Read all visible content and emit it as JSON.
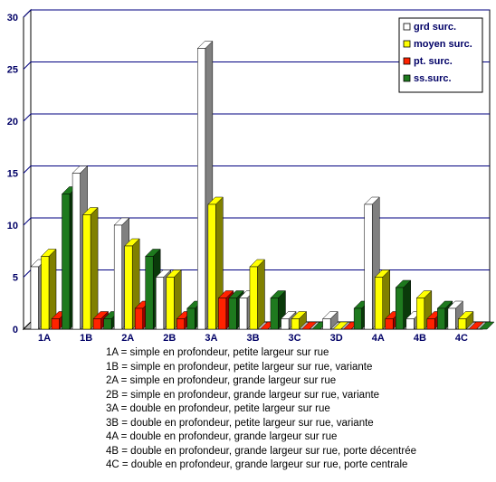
{
  "chart_data": {
    "type": "bar",
    "categories": [
      "1A",
      "1B",
      "2A",
      "2B",
      "3A",
      "3B",
      "3C",
      "3D",
      "4A",
      "4B",
      "4C"
    ],
    "y_ticks": [
      "0",
      "5",
      "10",
      "15",
      "20",
      "25",
      "30"
    ],
    "ylim": [
      0,
      30
    ],
    "grid": true,
    "legend_position": "top-right",
    "series": [
      {
        "name": "grd surc.",
        "values": [
          6,
          15,
          10,
          5,
          27,
          3,
          1,
          1,
          12,
          1,
          2
        ],
        "color": "#ffffff",
        "side_color": "#808080"
      },
      {
        "name": "moyen surc.",
        "values": [
          7,
          11,
          8,
          5,
          12,
          6,
          1,
          0,
          5,
          3,
          1
        ],
        "color": "#ffff00",
        "side_color": "#808000"
      },
      {
        "name": "pt. surc.",
        "values": [
          1,
          1,
          2,
          1,
          3,
          0,
          0,
          0,
          1,
          1,
          0
        ],
        "color": "#ff2200",
        "side_color": "#990000"
      },
      {
        "name": "ss.surc.",
        "values": [
          13,
          1,
          7,
          2,
          3,
          3,
          0,
          2,
          4,
          2,
          0
        ],
        "color": "#1e7a1e",
        "side_color": "#0a3a0a"
      }
    ],
    "notes": [
      "1A = simple en profondeur, petite largeur sur rue",
      "1B = simple en profondeur, petite largeur sur rue, variante",
      "2A =  simple en profondeur, grande largeur sur rue",
      "2B =  simple en profondeur, grande largeur sur rue, variante",
      "3A = double en profondeur, petite largeur sur rue",
      "3B = double en profondeur, petite largeur sur rue, variante",
      "4A = double en profondeur, grande largeur sur rue",
      "4B = double en profondeur, grande largeur sur rue, porte décentrée",
      "4C = double en profondeur, grande largeur sur rue, porte centrale"
    ]
  }
}
